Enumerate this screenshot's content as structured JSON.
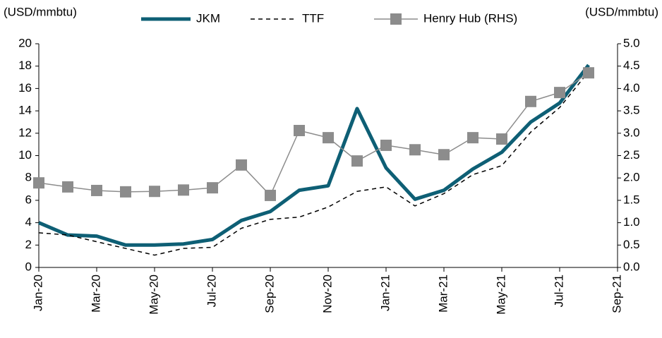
{
  "chart_data": {
    "type": "line",
    "y_label": "(USD/mmbtu)",
    "y2_label": "(USD/mmbtu)",
    "categories": [
      "Jan-20",
      null,
      "Mar-20",
      null,
      "May-20",
      null,
      "Jul-20",
      null,
      "Sep-20",
      null,
      "Nov-20",
      null,
      "Jan-21",
      null,
      "Mar-21",
      null,
      "May-21",
      null,
      "Jul-21",
      null,
      "Sep-21"
    ],
    "series": [
      {
        "name": "JKM",
        "color": "#0e5f75",
        "line_width": 5,
        "dash": false,
        "marker": false,
        "values": [
          4.0,
          2.9,
          2.8,
          2.0,
          2.0,
          2.1,
          2.5,
          4.2,
          5.0,
          6.9,
          7.3,
          14.2,
          8.9,
          6.1,
          6.9,
          8.8,
          10.3,
          13.0,
          14.7,
          18.1,
          null
        ]
      },
      {
        "name": "TTF",
        "color": "#000000",
        "line_width": 1.5,
        "dash": true,
        "marker": false,
        "values": [
          3.1,
          2.9,
          2.3,
          1.7,
          1.1,
          1.7,
          1.8,
          3.5,
          4.3,
          4.5,
          5.4,
          6.8,
          7.2,
          5.5,
          6.6,
          8.3,
          9.1,
          12.1,
          14.3,
          17.5,
          null
        ]
      },
      {
        "name": "Henry Hub (RHS)",
        "color": "#8c8c8c",
        "line_width": 1.5,
        "dash": false,
        "marker": true,
        "axis": "y2",
        "values": [
          1.89,
          1.8,
          1.72,
          1.69,
          1.7,
          1.73,
          1.78,
          2.29,
          1.61,
          3.06,
          2.9,
          2.38,
          2.73,
          2.63,
          2.52,
          2.9,
          2.87,
          3.71,
          3.91,
          4.35,
          null
        ]
      }
    ],
    "ylim": [
      0,
      20
    ],
    "yticks": [
      0,
      2,
      4,
      6,
      8,
      10,
      12,
      14,
      16,
      18,
      20
    ],
    "y2lim": [
      0,
      5
    ],
    "y2ticks": [
      {
        "value": 0,
        "label": "0.0"
      },
      0.5,
      {
        "value": 1,
        "label": "1.0"
      },
      1.5,
      {
        "value": 2,
        "label": "2.0"
      },
      2.5,
      {
        "value": 3,
        "label": "3.0"
      },
      3.5,
      {
        "value": 4,
        "label": "4.0"
      },
      4.5,
      {
        "value": 5,
        "label": "5.0"
      }
    ],
    "grid": false,
    "legend": "top"
  }
}
